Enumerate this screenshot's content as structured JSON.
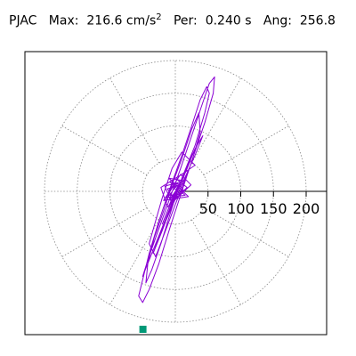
{
  "header": {
    "station": "PJAC",
    "max_label": "Max:",
    "max_value": "216.6 cm/s",
    "max_unit_exp": "2",
    "per_label": "Per:",
    "per_value": "0.240 s",
    "ang_label": "Ang:",
    "ang_value": "256.8"
  },
  "chart_data": {
    "type": "polar-particle-motion",
    "radius_ticks": [
      50,
      100,
      150,
      200
    ],
    "tick_labels": [
      "50",
      "100",
      "150",
      "200"
    ],
    "r_max": 200,
    "spoke_step_deg": 30,
    "grid": true,
    "trace_color": "#8a00d4",
    "marker_color": "#009977",
    "peak": {
      "value": 216.6,
      "angle_deg": 256.8
    },
    "trace_points": [
      [
        0,
        0
      ],
      [
        6,
        9
      ],
      [
        -5,
        8
      ],
      [
        8,
        -4
      ],
      [
        -9,
        -6
      ],
      [
        4,
        12
      ],
      [
        12,
        2
      ],
      [
        -3,
        -11
      ],
      [
        -12,
        4
      ],
      [
        10,
        10
      ],
      [
        -8,
        14
      ],
      [
        15,
        -6
      ],
      [
        -14,
        -10
      ],
      [
        3,
        18
      ],
      [
        18,
        6
      ],
      [
        -6,
        -17
      ],
      [
        -16,
        8
      ],
      [
        14,
        16
      ],
      [
        -10,
        20
      ],
      [
        20,
        -8
      ],
      [
        -18,
        -14
      ],
      [
        8,
        26
      ],
      [
        24,
        10
      ],
      [
        -12,
        -24
      ],
      [
        -22,
        6
      ],
      [
        16,
        30
      ],
      [
        30,
        40
      ],
      [
        10,
        60
      ],
      [
        -5,
        35
      ],
      [
        -20,
        -10
      ],
      [
        -30,
        -45
      ],
      [
        -40,
        -80
      ],
      [
        -30,
        -100
      ],
      [
        -15,
        -60
      ],
      [
        0,
        -20
      ],
      [
        10,
        5
      ],
      [
        25,
        45
      ],
      [
        38,
        90
      ],
      [
        36,
        120
      ],
      [
        25,
        95
      ],
      [
        10,
        50
      ],
      [
        -5,
        10
      ],
      [
        -18,
        -30
      ],
      [
        -32,
        -70
      ],
      [
        -42,
        -110
      ],
      [
        -45,
        -140
      ],
      [
        -36,
        -120
      ],
      [
        -22,
        -80
      ],
      [
        -5,
        -25
      ],
      [
        10,
        20
      ],
      [
        30,
        70
      ],
      [
        45,
        120
      ],
      [
        52,
        150
      ],
      [
        48,
        160
      ],
      [
        38,
        140
      ],
      [
        25,
        100
      ],
      [
        10,
        55
      ],
      [
        -8,
        5
      ],
      [
        -25,
        -45
      ],
      [
        -40,
        -95
      ],
      [
        -50,
        -135
      ],
      [
        -56,
        -160
      ],
      [
        -50,
        -170
      ],
      [
        -40,
        -150
      ],
      [
        -25,
        -110
      ],
      [
        -8,
        -55
      ],
      [
        10,
        0
      ],
      [
        28,
        55
      ],
      [
        45,
        105
      ],
      [
        58,
        150
      ],
      [
        60,
        175
      ],
      [
        52,
        165
      ],
      [
        40,
        130
      ],
      [
        25,
        85
      ],
      [
        8,
        35
      ],
      [
        -10,
        -15
      ],
      [
        -28,
        -65
      ],
      [
        -42,
        -105
      ],
      [
        -50,
        -130
      ],
      [
        -38,
        -100
      ],
      [
        -20,
        -55
      ],
      [
        -2,
        -10
      ],
      [
        15,
        30
      ],
      [
        30,
        65
      ],
      [
        42,
        85
      ],
      [
        30,
        55
      ],
      [
        12,
        15
      ],
      [
        -8,
        -30
      ],
      [
        -25,
        -70
      ],
      [
        -34,
        -95
      ],
      [
        -20,
        -60
      ],
      [
        -5,
        -20
      ],
      [
        8,
        15
      ],
      [
        20,
        45
      ],
      [
        28,
        60
      ],
      [
        16,
        30
      ],
      [
        2,
        2
      ],
      [
        -12,
        -30
      ],
      [
        -20,
        -50
      ],
      [
        -8,
        -20
      ],
      [
        5,
        10
      ],
      [
        14,
        25
      ],
      [
        6,
        6
      ],
      [
        -4,
        -10
      ],
      [
        -10,
        -22
      ],
      [
        2,
        4
      ],
      [
        9,
        14
      ],
      [
        -3,
        -6
      ],
      [
        -8,
        -12
      ],
      [
        0,
        0
      ]
    ]
  }
}
